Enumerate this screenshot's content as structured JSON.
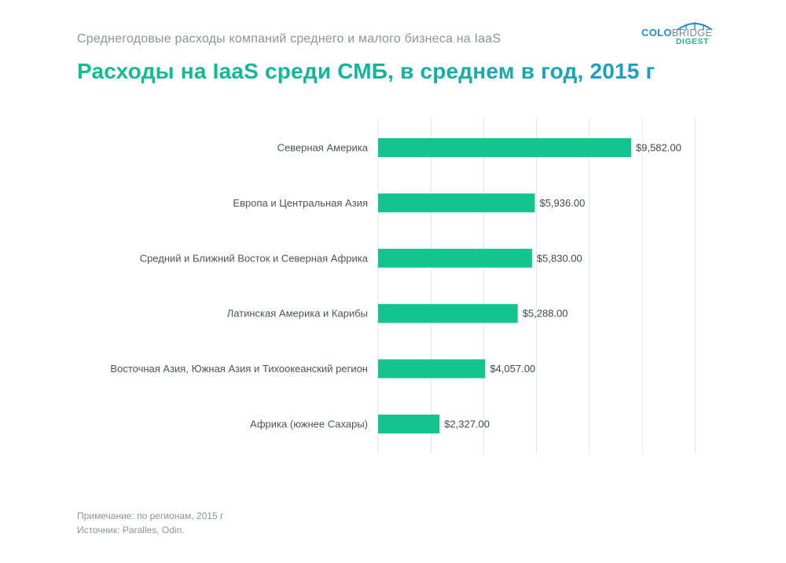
{
  "header": {
    "subtitle": "Среднегодовые расходы компаний среднего и малого бизнеса на IaaS",
    "title": "Расходы на IaaS среди СМБ, в среднем в год, 2015 г"
  },
  "logo": {
    "part1": "COLO",
    "part2": "BRIDGE",
    "part3": "DIGEST"
  },
  "footer": {
    "note": "Примечание: по регионам, 2015 г",
    "source": "Источник: Paralles, Odin."
  },
  "colors": {
    "bar": "#13c48f",
    "grid": "#e3e6e9",
    "title_start": "#10c08e",
    "title_end": "#1a9ec4"
  },
  "chart_data": {
    "type": "bar",
    "orientation": "horizontal",
    "title": "Расходы на IaaS среди СМБ, в среднем в год, 2015 г",
    "categories": [
      "Северная Америка",
      "Европа и Центральная Азия",
      "Средний и Ближний Восток и Северная Африка",
      "Латинская Америка и Карибы",
      "Восточная Азия, Южная Азия и Тихоокеанский регион",
      "Африка (южнее Сахары)"
    ],
    "values": [
      9582,
      5936,
      5830,
      5288,
      4057,
      2327
    ],
    "value_labels": [
      "$9,582.00",
      "$5,936.00",
      "$5,830.00",
      "$5,288.00",
      "$4,057.00",
      "$2,327.00"
    ],
    "xlim": [
      0,
      12000
    ],
    "grid": true,
    "xlabel": "",
    "ylabel": ""
  }
}
